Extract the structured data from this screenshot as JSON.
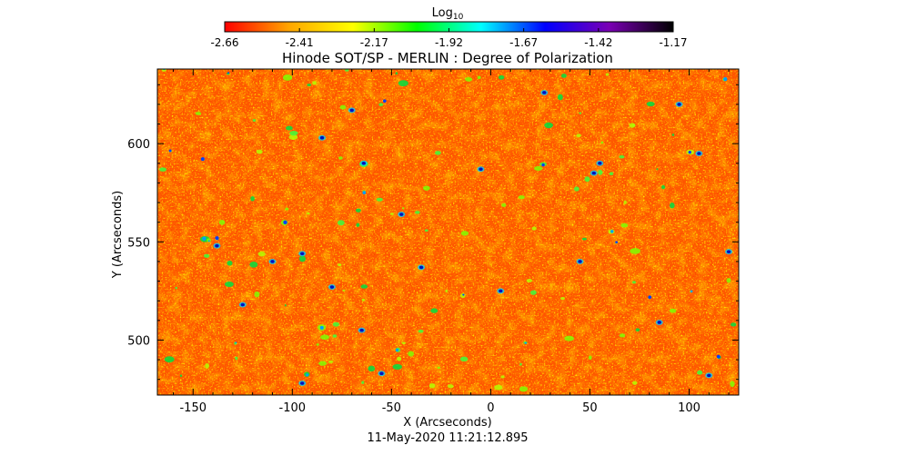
{
  "colorbar": {
    "label_main": "Log",
    "label_sub": "10",
    "ticks": [
      "-2.66",
      "-2.41",
      "-2.17",
      "-1.92",
      "-1.67",
      "-1.42",
      "-1.17"
    ],
    "colors": [
      "#ff0000",
      "#ffa500",
      "#ffff00",
      "#00ff00",
      "#00ffff",
      "#0000ff",
      "#7a00b4",
      "#000000"
    ]
  },
  "chart_data": {
    "type": "heatmap",
    "title": "Hinode SOT/SP - MERLIN : Degree of Polarization",
    "xlabel": "X (Arcseconds)",
    "ylabel": "Y (Arcseconds)",
    "xlim": [
      -168,
      125
    ],
    "ylim": [
      472,
      638
    ],
    "xticks": [
      -150,
      -100,
      -50,
      0,
      50,
      100
    ],
    "xtick_labels": [
      "-150",
      "-100",
      "-50",
      "0",
      "50",
      "100"
    ],
    "yticks": [
      500,
      550,
      600
    ],
    "ytick_labels": [
      "500",
      "550",
      "600"
    ],
    "value_range": [
      -2.66,
      -1.17
    ],
    "value_unit": "Log10",
    "timestamp": "11-May-2020 11:21:12.895"
  }
}
